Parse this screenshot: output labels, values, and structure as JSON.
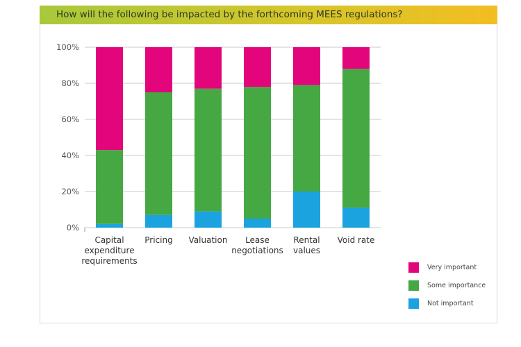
{
  "header": {
    "title": "How will the following be impacted by the forthcoming MEES regulations?"
  },
  "chart_data": {
    "type": "bar",
    "stacked": true,
    "title": "How will the following be impacted by the forthcoming MEES regulations?",
    "categories": [
      "Capital expenditure requirements",
      "Pricing",
      "Valuation",
      "Lease negotiations",
      "Rental values",
      "Void rate"
    ],
    "category_lines": [
      [
        "Capital",
        "expenditure",
        "requirements"
      ],
      [
        "Pricing"
      ],
      [
        "Valuation"
      ],
      [
        "Lease",
        "negotiations"
      ],
      [
        "Rental",
        "values"
      ],
      [
        "Void rate"
      ]
    ],
    "series": [
      {
        "name": "Not important",
        "color": "#1ba3e0",
        "values": [
          2,
          7,
          9,
          5,
          20,
          11
        ]
      },
      {
        "name": "Some importance",
        "color": "#46a843",
        "values": [
          41,
          68,
          68,
          73,
          59,
          77
        ]
      },
      {
        "name": "Very important",
        "color": "#e2057c",
        "values": [
          57,
          25,
          23,
          22,
          21,
          12
        ]
      }
    ],
    "ylim": [
      0,
      100
    ],
    "yticks": [
      "0%",
      "20%",
      "40%",
      "60%",
      "80%",
      "100%"
    ],
    "grid": true,
    "legend_position": "bottom-right",
    "legend_order": [
      "Very important",
      "Some importance",
      "Not important"
    ]
  }
}
